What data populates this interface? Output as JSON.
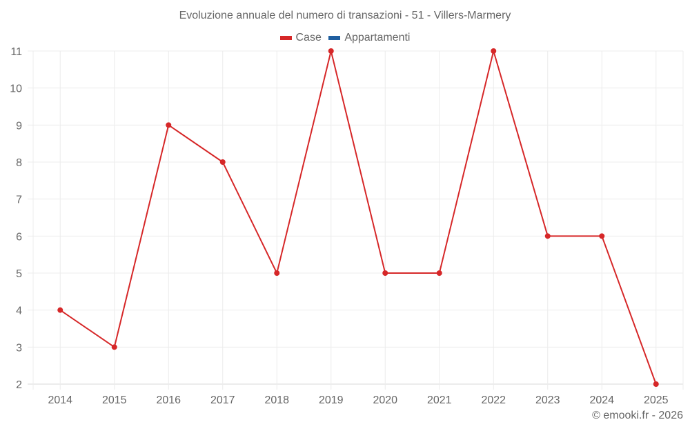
{
  "chart_data": {
    "type": "line",
    "title": "Evoluzione annuale del numero di transazioni - 51 - Villers-Marmery",
    "categories": [
      "2014",
      "2015",
      "2016",
      "2017",
      "2018",
      "2019",
      "2020",
      "2021",
      "2022",
      "2023",
      "2024",
      "2025"
    ],
    "series": [
      {
        "name": "Case",
        "color": "#d62728",
        "values": [
          4,
          3,
          9,
          8,
          5,
          11,
          5,
          5,
          11,
          6,
          6,
          2
        ]
      },
      {
        "name": "Appartamenti",
        "color": "#1f5fa0",
        "values": []
      }
    ],
    "xlabel": "",
    "ylabel": "",
    "ylim": [
      2,
      11
    ],
    "yticks": [
      2,
      3,
      4,
      5,
      6,
      7,
      8,
      9,
      10,
      11
    ],
    "grid": true,
    "legend_position": "top"
  },
  "legend": {
    "case_label": "Case",
    "appartamenti_label": "Appartamenti"
  },
  "credit": "© emooki.fr - 2026"
}
